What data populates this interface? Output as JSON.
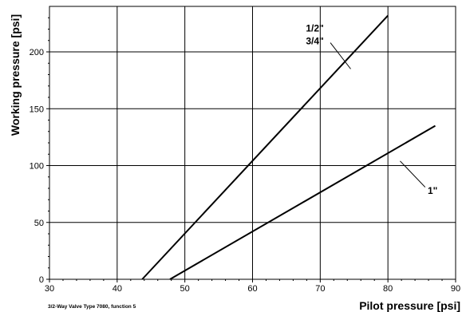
{
  "chart_data": {
    "type": "line",
    "xlabel": "Pilot pressure [psi]",
    "ylabel": "Working pressure [psi]",
    "caption": "3/2-Way Valve Type 7080,  function 5",
    "xlim": [
      30,
      90
    ],
    "ylim": [
      0,
      240
    ],
    "xticks": [
      30,
      40,
      50,
      60,
      70,
      80,
      90
    ],
    "yticks": [
      0,
      50,
      100,
      150,
      200
    ],
    "grid": true,
    "series": [
      {
        "name_lines": [
          "1/2\"",
          "3/4\""
        ],
        "x": [
          43.7,
          80
        ],
        "y": [
          0,
          232
        ]
      },
      {
        "name_lines": [
          "1\""
        ],
        "x": [
          47.8,
          87
        ],
        "y": [
          0,
          135
        ]
      }
    ]
  }
}
